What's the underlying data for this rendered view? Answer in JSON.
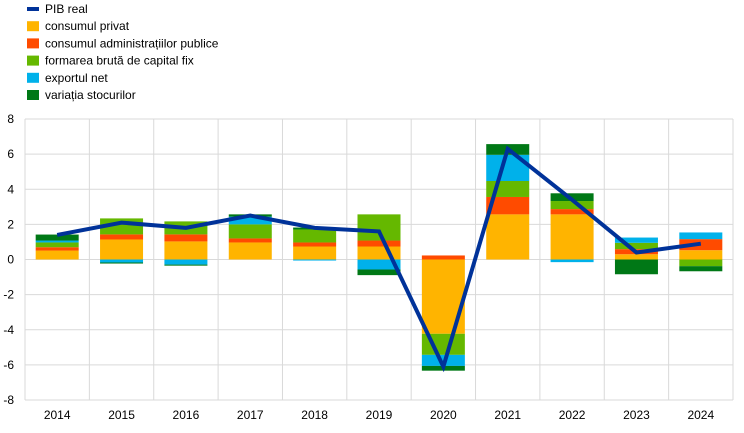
{
  "chart_data": {
    "type": "bar",
    "stacked": true,
    "categories": [
      "2014",
      "2015",
      "2016",
      "2017",
      "2018",
      "2019",
      "2020",
      "2021",
      "2022",
      "2023",
      "2024"
    ],
    "ylim": [
      -8,
      8
    ],
    "yticks": [
      -8,
      -6,
      -4,
      -2,
      0,
      2,
      4,
      6,
      8
    ],
    "grid": true,
    "legend_placement": "top-left",
    "line": {
      "name": "PIB real",
      "color": "#003299",
      "values": [
        1.4,
        2.1,
        1.8,
        2.5,
        1.8,
        1.6,
        -6.1,
        6.3,
        3.4,
        0.4,
        0.9
      ]
    },
    "series": [
      {
        "name": "consumul privat",
        "color": "#FFB400",
        "values": [
          0.51,
          1.14,
          1.03,
          0.97,
          0.74,
          0.74,
          -4.23,
          2.57,
          2.57,
          0.3,
          0.53
        ]
      },
      {
        "name": "consumul administrațiilor publice",
        "color": "#FF4B00",
        "values": [
          0.19,
          0.29,
          0.4,
          0.23,
          0.23,
          0.34,
          0.23,
          0.99,
          0.3,
          0.29,
          0.63
        ]
      },
      {
        "name": "formarea brută de capital fix",
        "color": "#65B800",
        "values": [
          0.27,
          0.91,
          0.74,
          0.8,
          0.74,
          1.49,
          -1.2,
          0.91,
          0.46,
          0.36,
          -0.38
        ]
      },
      {
        "name": "exportul net",
        "color": "#00B1EA",
        "values": [
          0.11,
          -0.17,
          -0.29,
          0.44,
          -0.06,
          -0.57,
          -0.63,
          1.49,
          -0.15,
          0.3,
          0.38
        ]
      },
      {
        "name": "variația stocurilor",
        "color": "#007816",
        "values": [
          0.34,
          -0.06,
          -0.06,
          0.13,
          0.11,
          -0.32,
          -0.27,
          0.61,
          0.44,
          -0.84,
          -0.29
        ]
      }
    ]
  }
}
